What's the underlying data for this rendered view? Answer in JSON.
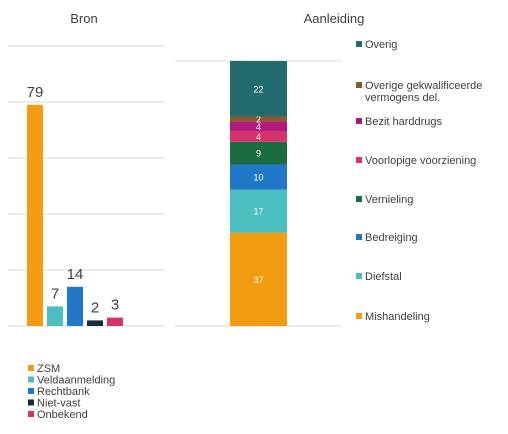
{
  "chart_data": [
    {
      "type": "bar",
      "title": "Bron",
      "categories": [
        "ZSM",
        "Veldaanmelding",
        "Rechtbank",
        "Niet-vast",
        "Onbekend"
      ],
      "values": [
        79,
        7,
        14,
        2,
        3
      ],
      "colors": [
        "#f39c12",
        "#4bbfbf",
        "#1f78c8",
        "#1a2a40",
        "#d6336c"
      ],
      "ylim": [
        0,
        100
      ],
      "grid": true,
      "legend": "bottom"
    },
    {
      "type": "bar",
      "stacked": true,
      "title": "Aanleiding",
      "series": [
        {
          "name": "Mishandeling",
          "value": 37,
          "color": "#f39c12"
        },
        {
          "name": "Diefstal",
          "value": 17,
          "color": "#4bbfbf"
        },
        {
          "name": "Bedreiging",
          "value": 10,
          "color": "#1f78c8"
        },
        {
          "name": "Vernieling",
          "value": 9,
          "color": "#1b6b43"
        },
        {
          "name": "Voorlopige voorziening",
          "value": 4,
          "color": "#d6336c"
        },
        {
          "name": "Bezit harddrugs",
          "value": 4,
          "color": "#b3197a"
        },
        {
          "name": "Overige gekwalificeerde vermogens del.",
          "value": 2,
          "color": "#8a5a2b"
        },
        {
          "name": "Overig",
          "value": 22,
          "color": "#236b6e"
        }
      ],
      "legend": "right"
    }
  ]
}
